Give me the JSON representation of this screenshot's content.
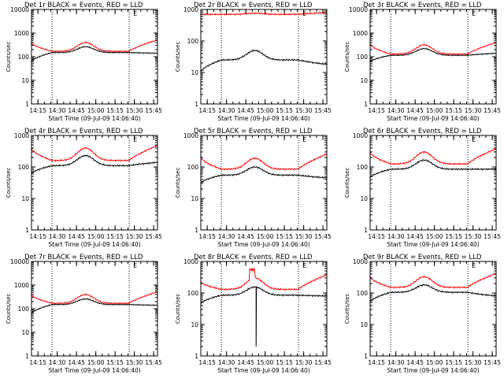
{
  "chart_data": [
    {
      "type": "line",
      "title": "Det 1r BLACK = Events, RED = LLD",
      "ylabel": "Counts/sec",
      "xlabel": "Start Time (09-Jul-09 14:06:40)",
      "yscale": "log",
      "ylim": [
        1,
        10000
      ],
      "xlim": [
        "14:10",
        "15:48"
      ],
      "x_ticks": [
        "14:15",
        "14:30",
        "14:45",
        "15:00",
        "15:15",
        "15:30",
        "15:45"
      ],
      "y_ticks": [
        "1",
        "10",
        "100",
        "1000",
        "10000"
      ],
      "vlines": [
        "14:26",
        "15:26"
      ],
      "corner_mark": "E",
      "series": [
        {
          "color": "#000000",
          "profile": "smooth",
          "base": 150,
          "peak": 265,
          "left": 60,
          "right": 140
        },
        {
          "color": "#ff0000",
          "profile": "smooth",
          "base": 170,
          "peak": 400,
          "left": 400,
          "right": 520
        }
      ]
    },
    {
      "type": "line",
      "title": "Det 2r BLACK = Events, RED = LLD",
      "ylabel": "Counts/sec",
      "xlabel": "Start Time (09-Jul-09 14:06:40)",
      "yscale": "log",
      "ylim": [
        1,
        1000
      ],
      "xlim": [
        "14:10",
        "15:48"
      ],
      "x_ticks": [
        "14:15",
        "14:30",
        "14:45",
        "15:00",
        "15:15",
        "15:30",
        "15:45"
      ],
      "y_ticks": [
        "1",
        "10",
        "100",
        "1000"
      ],
      "vlines": [
        "14:26",
        "15:26"
      ],
      "corner_mark": "E",
      "series": [
        {
          "color": "#000000",
          "profile": "smooth",
          "base": 25,
          "peak": 50,
          "left": 10,
          "right": 18
        },
        {
          "color": "#ff0000",
          "profile": "smooth",
          "base": 700,
          "peak": 760,
          "left": 700,
          "right": 800
        }
      ]
    },
    {
      "type": "line",
      "title": "Det 3r BLACK = Events, RED = LLD",
      "ylabel": "Counts/sec",
      "xlabel": "Start Time (09-Jul-09 14:06:40)",
      "yscale": "log",
      "ylim": [
        1,
        10000
      ],
      "xlim": [
        "14:10",
        "15:48"
      ],
      "x_ticks": [
        "14:15",
        "14:30",
        "14:45",
        "15:00",
        "15:15",
        "15:30",
        "15:45"
      ],
      "y_ticks": [
        "1",
        "10",
        "100",
        "1000",
        "10000"
      ],
      "vlines": [
        "14:26",
        "15:26"
      ],
      "corner_mark": "E",
      "series": [
        {
          "color": "#000000",
          "profile": "smooth",
          "base": 115,
          "peak": 220,
          "left": 60,
          "right": 140
        },
        {
          "color": "#ff0000",
          "profile": "smooth",
          "base": 130,
          "peak": 320,
          "left": 350,
          "right": 400
        }
      ]
    },
    {
      "type": "line",
      "title": "Det 4r BLACK = Events, RED = LLD",
      "ylabel": "Counts/sec",
      "xlabel": "Start Time (09-Jul-09 14:06:40)",
      "yscale": "log",
      "ylim": [
        1,
        1000
      ],
      "xlim": [
        "14:10",
        "15:48"
      ],
      "x_ticks": [
        "14:15",
        "14:30",
        "14:45",
        "15:00",
        "15:15",
        "15:30",
        "15:45"
      ],
      "y_ticks": [
        "1",
        "10",
        "100",
        "1000"
      ],
      "vlines": [
        "14:26",
        "15:26"
      ],
      "corner_mark": "E",
      "series": [
        {
          "color": "#000000",
          "profile": "smooth",
          "base": 110,
          "peak": 230,
          "left": 60,
          "right": 140
        },
        {
          "color": "#ff0000",
          "profile": "smooth",
          "base": 160,
          "peak": 400,
          "left": 400,
          "right": 480
        }
      ]
    },
    {
      "type": "line",
      "title": "Det 5r BLACK = Events, RED = LLD",
      "ylabel": "Counts/sec",
      "xlabel": "Start Time (09-Jul-09 14:06:40)",
      "yscale": "log",
      "ylim": [
        1,
        1000
      ],
      "xlim": [
        "14:10",
        "15:48"
      ],
      "x_ticks": [
        "14:15",
        "14:30",
        "14:45",
        "15:00",
        "15:15",
        "15:30",
        "15:45"
      ],
      "y_ticks": [
        "1",
        "10",
        "100",
        "1000"
      ],
      "vlines": [
        "14:26",
        "15:26"
      ],
      "corner_mark": "E",
      "series": [
        {
          "color": "#000000",
          "profile": "smooth",
          "base": 55,
          "peak": 100,
          "left": 30,
          "right": 45
        },
        {
          "color": "#ff0000",
          "profile": "smooth",
          "base": 85,
          "peak": 190,
          "left": 210,
          "right": 260
        }
      ]
    },
    {
      "type": "line",
      "title": "Det 6r BLACK = Events, RED = LLD",
      "ylabel": "Counts/sec",
      "xlabel": "Start Time (09-Jul-09 14:06:40)",
      "yscale": "log",
      "ylim": [
        1,
        1000
      ],
      "xlim": [
        "14:10",
        "15:48"
      ],
      "x_ticks": [
        "14:15",
        "14:30",
        "14:45",
        "15:00",
        "15:15",
        "15:30",
        "15:45"
      ],
      "y_ticks": [
        "1",
        "10",
        "100",
        "1000"
      ],
      "vlines": [
        "14:26",
        "15:26"
      ],
      "corner_mark": "E",
      "series": [
        {
          "color": "#000000",
          "profile": "smooth",
          "base": 85,
          "peak": 165,
          "left": 45,
          "right": 85
        },
        {
          "color": "#ff0000",
          "profile": "smooth",
          "base": 125,
          "peak": 300,
          "left": 300,
          "right": 380
        }
      ]
    },
    {
      "type": "line",
      "title": "Det 7r BLACK = Events, RED = LLD",
      "ylabel": "Counts/sec",
      "xlabel": "Start Time (09-Jul-09 14:06:40)",
      "yscale": "log",
      "ylim": [
        1,
        10000
      ],
      "xlim": [
        "14:10",
        "15:48"
      ],
      "x_ticks": [
        "14:15",
        "14:30",
        "14:45",
        "15:00",
        "15:15",
        "15:30",
        "15:45"
      ],
      "y_ticks": [
        "1",
        "10",
        "100",
        "1000",
        "10000"
      ],
      "vlines": [
        "14:26",
        "15:26"
      ],
      "corner_mark": "E",
      "series": [
        {
          "color": "#000000",
          "profile": "smooth",
          "base": 150,
          "peak": 260,
          "left": 60,
          "right": 140
        },
        {
          "color": "#ff0000",
          "profile": "smooth",
          "base": 170,
          "peak": 400,
          "left": 400,
          "right": 520
        }
      ]
    },
    {
      "type": "line",
      "title": "Det 8r BLACK = Events, RED = LLD",
      "ylabel": "Counts/sec",
      "xlabel": "Start Time (09-Jul-09 14:06:40)",
      "yscale": "log",
      "ylim": [
        1,
        1000
      ],
      "xlim": [
        "14:10",
        "15:48"
      ],
      "x_ticks": [
        "14:15",
        "14:30",
        "14:45",
        "15:00",
        "15:15",
        "15:30",
        "15:45"
      ],
      "y_ticks": [
        "1",
        "10",
        "100",
        "1000"
      ],
      "vlines": [
        "14:26",
        "15:26"
      ],
      "corner_mark": "E",
      "series": [
        {
          "color": "#000000",
          "profile": "smooth",
          "base": 85,
          "peak": 155,
          "left": 45,
          "right": 80,
          "dip": {
            "at": "14:53",
            "value": 2
          }
        },
        {
          "color": "#ff0000",
          "profile": "smooth",
          "base": 130,
          "peak": 300,
          "left": 230,
          "right": 380,
          "spike": {
            "from": "14:48",
            "to": "14:52",
            "value": 550
          }
        }
      ]
    },
    {
      "type": "line",
      "title": "Det 9r BLACK = Events, RED = LLD",
      "ylabel": "Counts/sec",
      "xlabel": "Start Time (09-Jul-09 14:06:40)",
      "yscale": "log",
      "ylim": [
        1,
        1000
      ],
      "xlim": [
        "14:10",
        "15:48"
      ],
      "x_ticks": [
        "14:15",
        "14:30",
        "14:45",
        "15:00",
        "15:15",
        "15:30",
        "15:45"
      ],
      "y_ticks": [
        "1",
        "10",
        "100",
        "1000"
      ],
      "vlines": [
        "14:26",
        "15:26"
      ],
      "corner_mark": "E",
      "series": [
        {
          "color": "#000000",
          "profile": "smooth",
          "base": 105,
          "peak": 180,
          "left": 50,
          "right": 80
        },
        {
          "color": "#ff0000",
          "profile": "smooth",
          "base": 150,
          "peak": 330,
          "left": 330,
          "right": 420
        }
      ]
    }
  ]
}
